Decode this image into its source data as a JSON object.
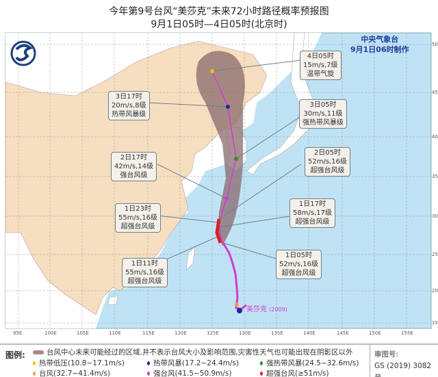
{
  "header": {
    "title": "今年第9号台风“美莎克”未来72小时路径概率预报图",
    "subtitle": "9月1日05时—4日05时(北京时)"
  },
  "agency": {
    "name": "中央气象台",
    "issued": "9月1日06时制作"
  },
  "typhoon": {
    "name": "美莎克",
    "code": "(2009)"
  },
  "axes": {
    "longitude": [
      "95E",
      "100E",
      "105E",
      "110E",
      "115E",
      "120E",
      "125E",
      "130E",
      "135E",
      "140E",
      "145E",
      "150E",
      "155E"
    ],
    "latitude": [
      "50N",
      "45N",
      "40N",
      "35N",
      "30N",
      "25N",
      "20N",
      "15N"
    ]
  },
  "forecast_points": [
    {
      "time": "4日05时",
      "wind": "15m/s,7级",
      "level": "温带气旋",
      "color": "#f2c400"
    },
    {
      "time": "3日17时",
      "wind": "20m/s,8级",
      "level": "热带风暴级",
      "color": "#1b2a9c"
    },
    {
      "time": "3日05时",
      "wind": "30m/s,11级",
      "level": "强热带风暴级",
      "color": "#2e8b2e"
    },
    {
      "time": "2日17时",
      "wind": "42m/s,14级",
      "level": "强台风级",
      "color": "#d13bd1"
    },
    {
      "time": "2日05时",
      "wind": "52m/s,16级",
      "level": "超强台风级",
      "color": "#e02020"
    },
    {
      "time": "1日23时",
      "wind": "55m/s,16级",
      "level": "超强台风级",
      "color": "#e02020"
    },
    {
      "time": "1日17时",
      "wind": "58m/s,17级",
      "level": "超强台风级",
      "color": "#e02020"
    },
    {
      "time": "1日11时",
      "wind": "55m/s,16级",
      "level": "超强台风级",
      "color": "#e02020"
    },
    {
      "time": "1日05时",
      "wind": "52m/s,16级",
      "level": "超强台风级",
      "color": "#e02020"
    }
  ],
  "legend": {
    "label": "图例:",
    "cone_text": "台风中心未来可能经过的区域,并不表示台风大小及影响范围,灾害性天气也可能出现在阴影区以外",
    "items": [
      {
        "text": "热带低压(10.8~17.1m/s)",
        "color": "#f2c400"
      },
      {
        "text": "热带风暴(17.2~24.4m/s)",
        "color": "#1b2a9c"
      },
      {
        "text": "强热带风暴(24.5~32.6m/s)",
        "color": "#2e8b2e"
      },
      {
        "text": "台风(32.7~41.4m/s)",
        "color": "#f0a040"
      },
      {
        "text": "强台风(41.5~50.9m/s)",
        "color": "#d13bd1"
      },
      {
        "text": "超强台风(≥51m/s)",
        "color": "#e02020"
      }
    ],
    "approval_label": "审图号:",
    "approval_no": "GS (2019) 3082号"
  },
  "colors": {
    "sea": "#bfe3f5",
    "china_land": "#f6dfc0",
    "other_land": "#ffffff",
    "cone": "#8a6a6e",
    "track": "#d13bd1"
  }
}
